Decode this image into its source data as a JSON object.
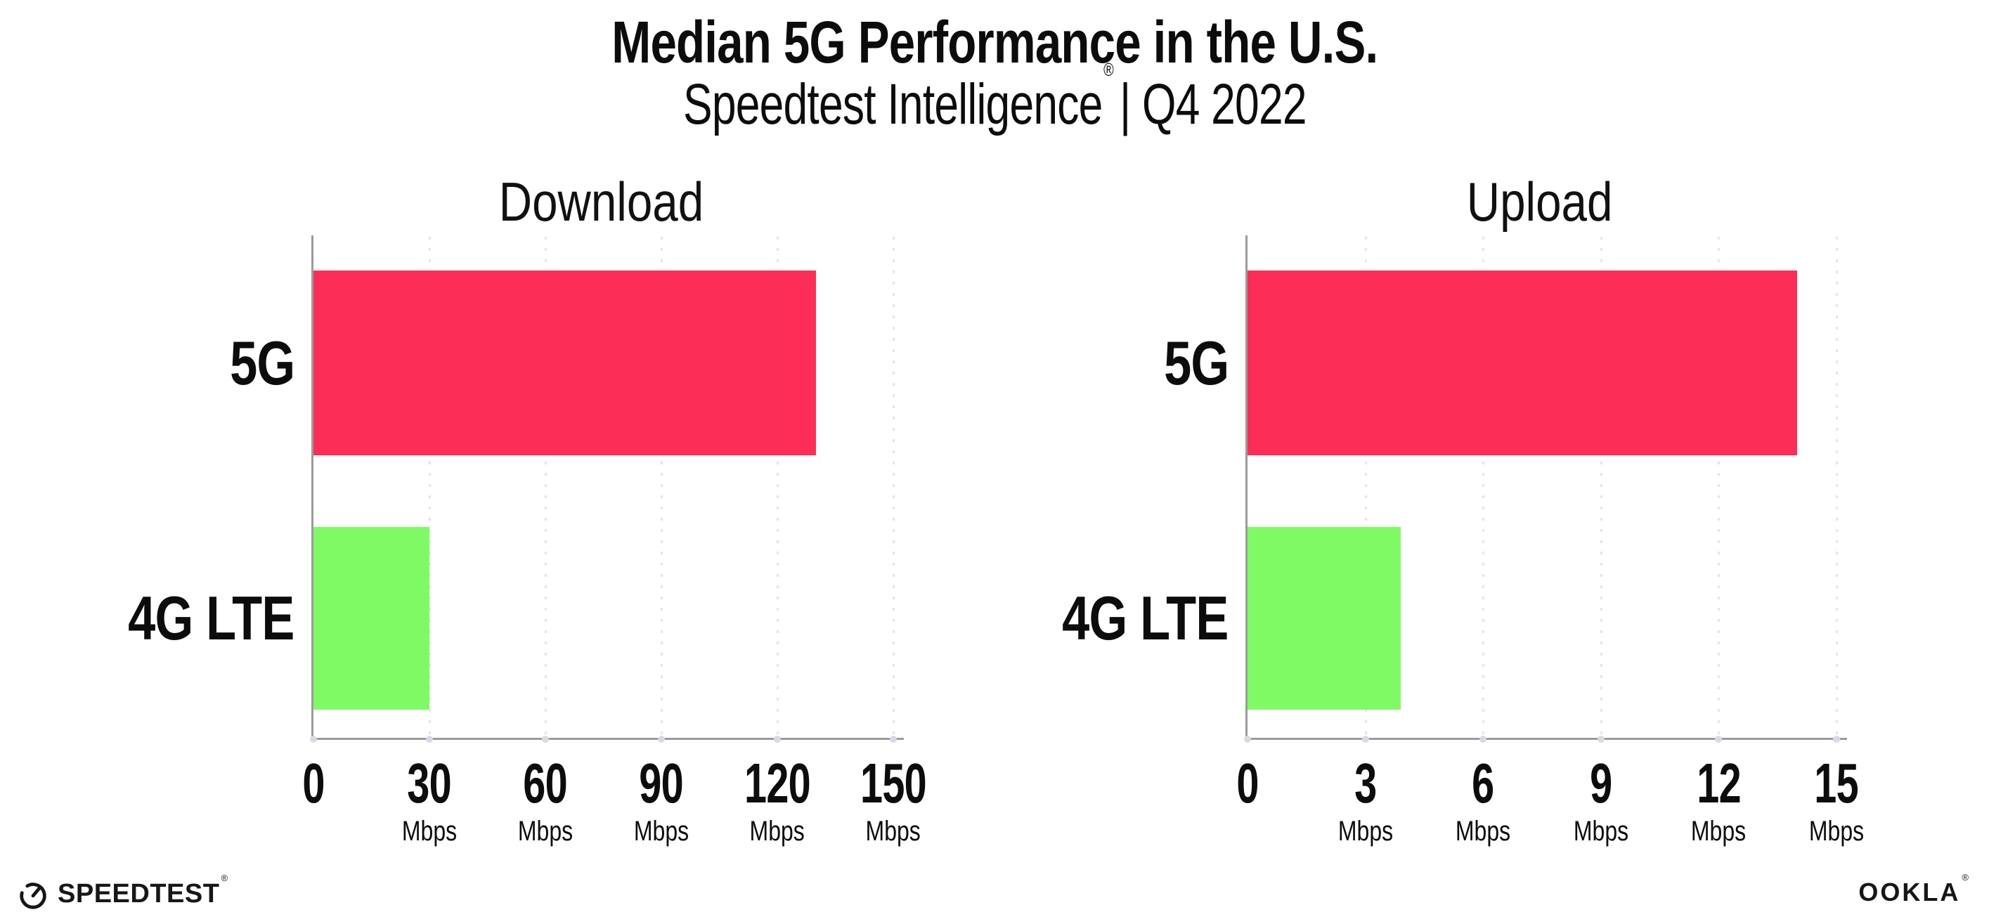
{
  "header": {
    "title": "Median 5G Performance in the U.S.",
    "subtitle_brand": "Speedtest Intelligence",
    "subtitle_reg": "®",
    "subtitle_rest": "| Q4 2022"
  },
  "chart_data": [
    {
      "type": "bar",
      "orientation": "horizontal",
      "title": "Download",
      "categories": [
        "5G",
        "4G LTE"
      ],
      "values": [
        130,
        30
      ],
      "unit": "Mbps",
      "xlim": [
        0,
        150
      ],
      "xticks": [
        0,
        30,
        60,
        90,
        120,
        150
      ],
      "bar_colors": [
        "#FC2E57",
        "#7FFA64"
      ],
      "grid": "dotted-vertical-on",
      "legend": "none"
    },
    {
      "type": "bar",
      "orientation": "horizontal",
      "title": "Upload",
      "categories": [
        "5G",
        "4G LTE"
      ],
      "values": [
        14,
        3.9
      ],
      "unit": "Mbps",
      "xlim": [
        0,
        15
      ],
      "xticks": [
        0,
        3,
        6,
        9,
        12,
        15
      ],
      "bar_colors": [
        "#FC2E57",
        "#7FFA64"
      ],
      "grid": "dotted-vertical-on",
      "legend": "none"
    }
  ],
  "footer": {
    "speedtest_label": "SPEEDTEST",
    "speedtest_mark": "®",
    "ookla_label": "OOKLA",
    "ookla_mark": "®"
  },
  "colors": {
    "bar_5g": "#FC2E57",
    "bar_4g_lte": "#7FFA64",
    "axis": "#9B9B9B",
    "gridline": "#E4E4EE",
    "text": "#0C0C0C"
  }
}
